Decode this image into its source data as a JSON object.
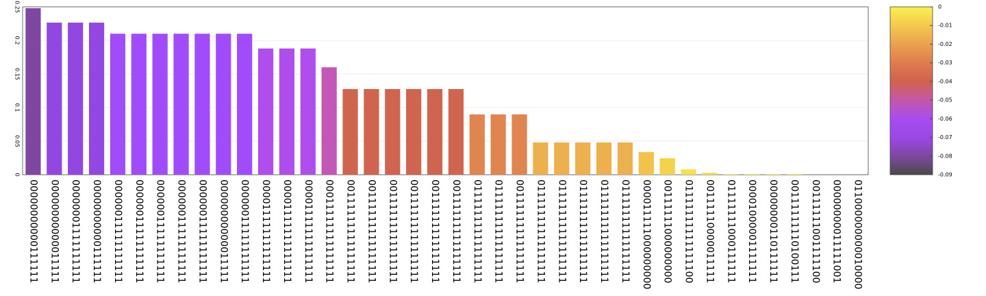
{
  "chart_data": {
    "type": "bar",
    "categories": [
      "00000000000111111",
      "00000000000011111",
      "00000001111111111",
      "00000000000111111",
      "00000011111111111",
      "00000011111111111",
      "00000011111111111",
      "00000011111111111",
      "00000011111111111",
      "00000000000011111",
      "00000011111111111",
      "00001111111111111",
      "00001111111111111",
      "00001111111111111",
      "00011111111111111",
      "00111111111111111",
      "00111111111111111",
      "00111111111111111",
      "00111111111111111",
      "00111111111111111",
      "00111111111111111",
      "01111111111111111",
      "01111111111111111",
      "00111111111111111",
      "01111111111111111",
      "01111111111111111",
      "01111111111111111",
      "01111111111111111",
      "01111111111111111",
      "000011111000000000",
      "00111111000000000",
      "01111111111111100",
      "00111110000011111",
      "01111111000111111",
      "00001000001111111",
      "00000000110111111",
      "00111111110100111",
      "00111111001111100",
      "00000000011111001",
      "011000000000010000"
    ],
    "values": [
      0.248,
      0.2265,
      0.2265,
      0.2265,
      0.21,
      0.21,
      0.21,
      0.21,
      0.21,
      0.21,
      0.21,
      0.188,
      0.188,
      0.188,
      0.16,
      0.1276,
      0.1276,
      0.1276,
      0.1276,
      0.1276,
      0.1276,
      0.0898,
      0.0898,
      0.0898,
      0.048,
      0.048,
      0.048,
      0.048,
      0.048,
      0.0337,
      0.0245,
      0.008,
      0.003,
      0.001,
      0.001,
      0.001,
      0.001,
      0,
      0,
      0
    ],
    "colors": [
      "#7e48a0",
      "#9247e0",
      "#9247e0",
      "#9247e0",
      "#a04cfb",
      "#a04cfb",
      "#a04cfb",
      "#a04cfb",
      "#a04cfb",
      "#a04cfb",
      "#a04cfb",
      "#af4ded",
      "#af4ded",
      "#af4ded",
      "#c257b8",
      "#cf654f",
      "#cf654f",
      "#cf654f",
      "#cf654f",
      "#cf654f",
      "#cf654f",
      "#e08550",
      "#e08550",
      "#e08550",
      "#ecb04e",
      "#ecb04e",
      "#ecb04e",
      "#ecb04e",
      "#ecb04e",
      "#f2c24c",
      "#f4d24a",
      "#f5e04a",
      "#f5e04a",
      "#f8ec50",
      "#f8ec50",
      "#f8ec50",
      "#f8ec50",
      "#f8ec50",
      "#f8ec50",
      "#f8ec50"
    ],
    "ylim": [
      0,
      0.25
    ],
    "yticks": [
      0,
      0.05,
      0.1,
      0.15,
      0.2,
      0.25
    ],
    "grid": true,
    "colorbar": {
      "lim": [
        -0.09,
        0
      ],
      "ticks": [
        0,
        -0.01,
        -0.02,
        -0.03,
        -0.04,
        -0.05,
        -0.06,
        -0.07,
        -0.08,
        -0.09
      ],
      "colormap": [
        "#f9f04f",
        "#f4c94d",
        "#eba24e",
        "#de7c4e",
        "#d0624e",
        "#c457a8",
        "#a84df0",
        "#9a48e6",
        "#7e48a0",
        "#4a4a4a"
      ]
    }
  }
}
